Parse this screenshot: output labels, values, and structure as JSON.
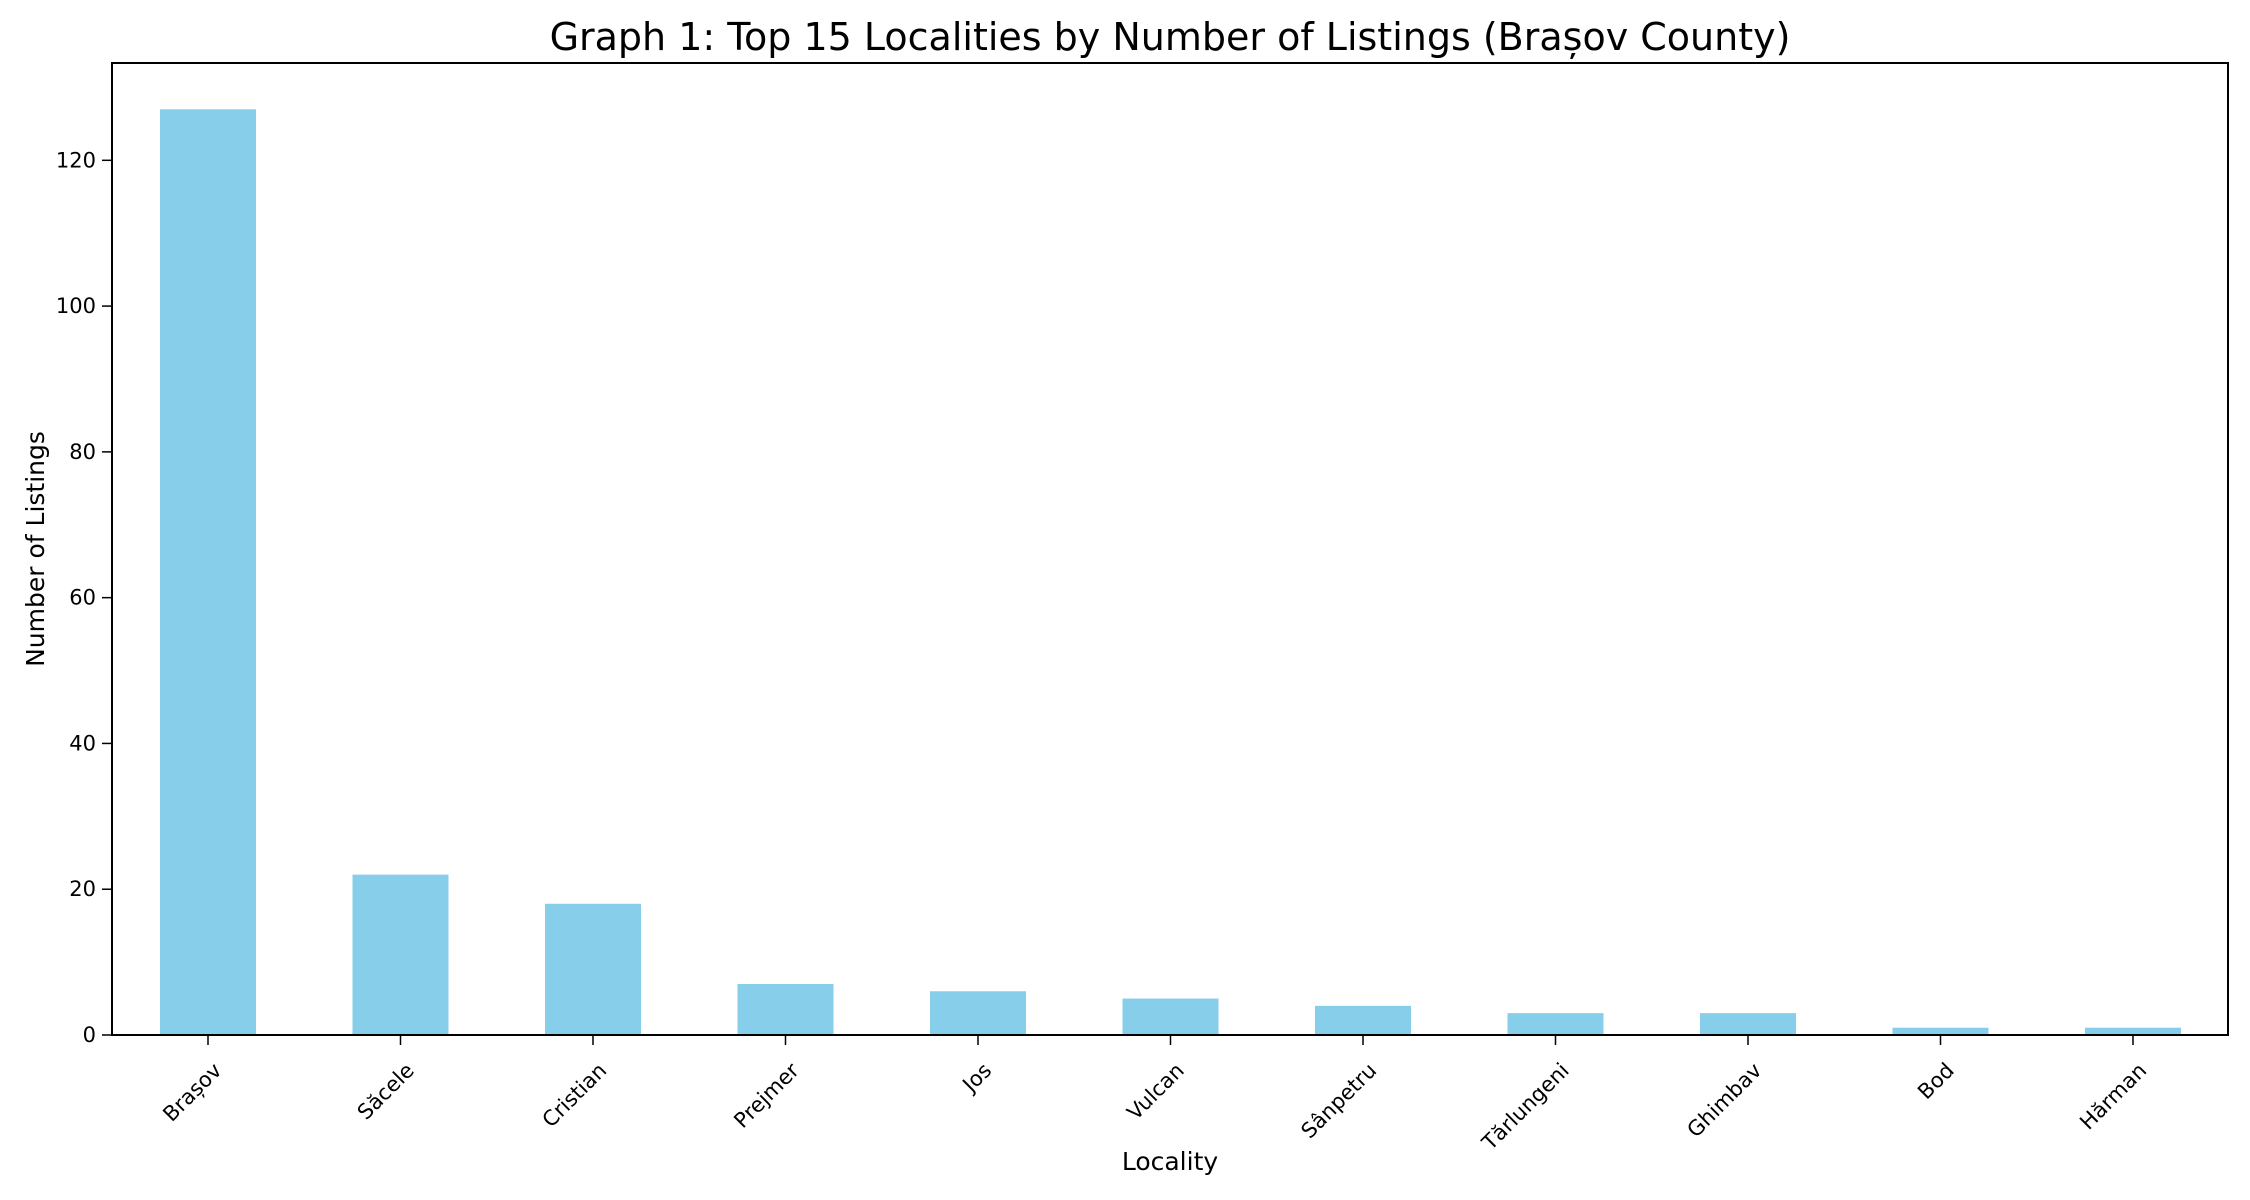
{
  "chart_data": {
    "type": "bar",
    "title": "Graph 1: Top 15 Localities by Number of Listings (Brașov County)",
    "xlabel": "Locality",
    "ylabel": "Number of Listings",
    "categories": [
      "Brașov",
      "Săcele",
      "Cristian",
      "Prejmer",
      "Jos",
      "Vulcan",
      "Sânpetru",
      "Tărlungeni",
      "Ghimbav",
      "Bod",
      "Hărman"
    ],
    "values": [
      127,
      22,
      18,
      7,
      6,
      5,
      4,
      3,
      3,
      1,
      1
    ],
    "ylim": [
      0,
      133.35
    ],
    "yticks": [
      0,
      20,
      40,
      60,
      80,
      100,
      120
    ],
    "bar_color": "#87CEEB",
    "grid": false,
    "legend": false
  }
}
